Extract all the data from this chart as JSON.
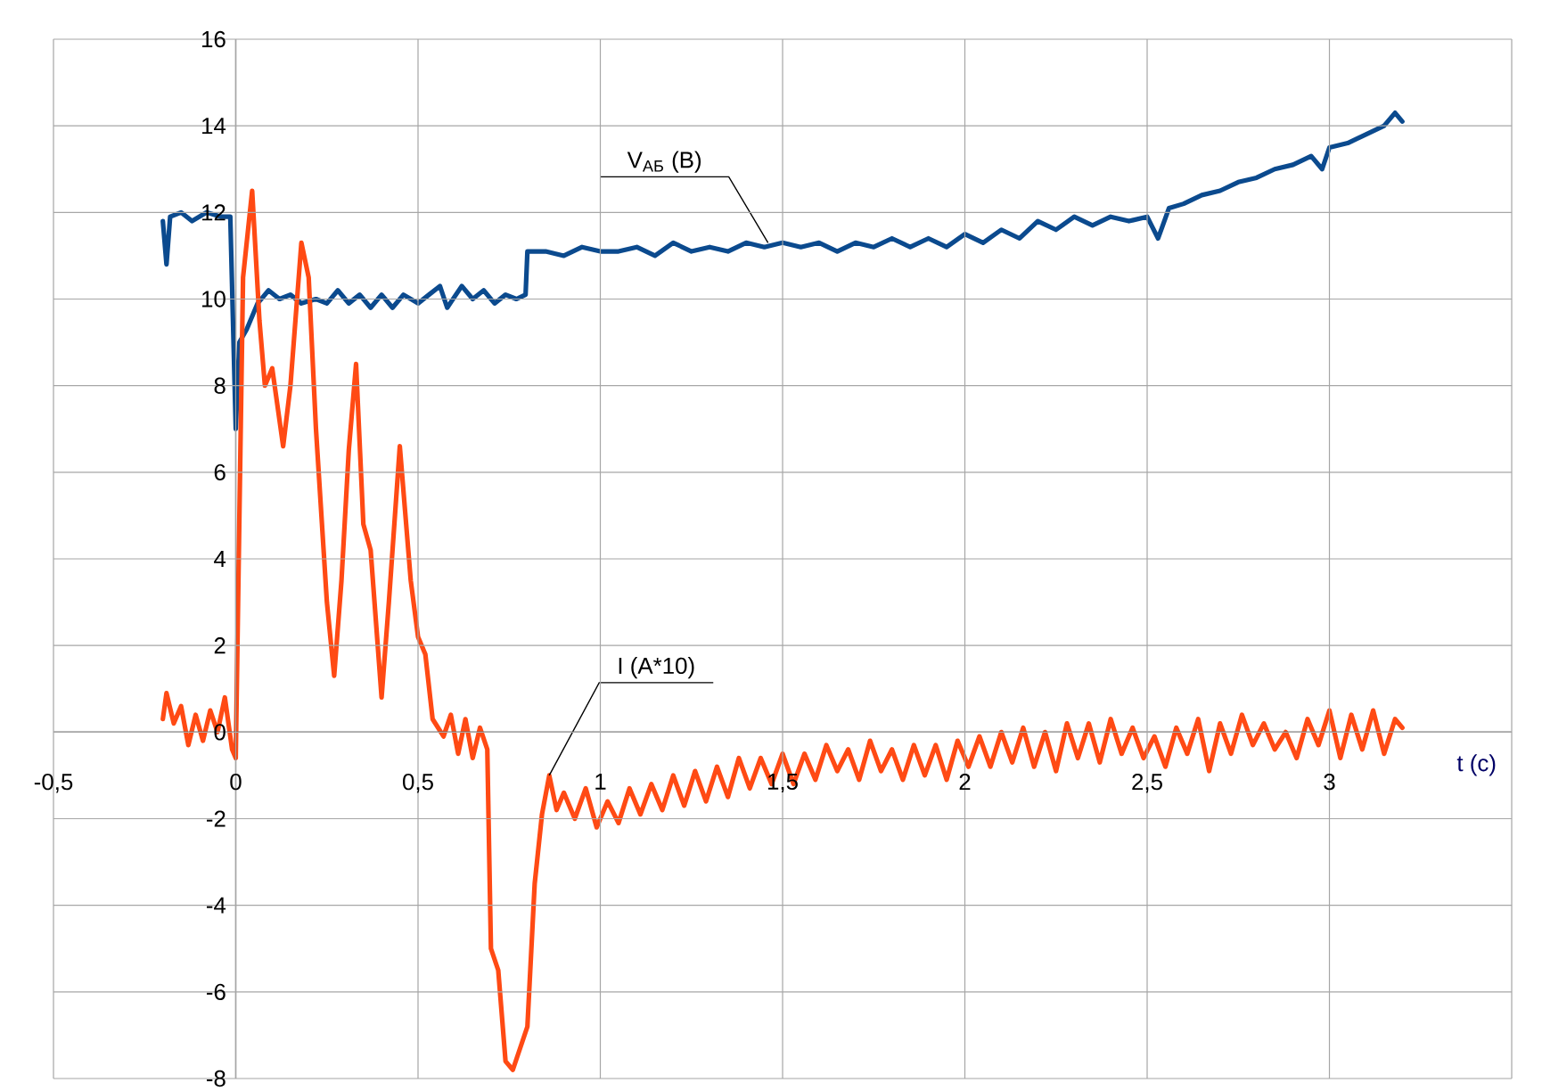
{
  "chart_data": {
    "type": "line",
    "xlabel": "t (с)",
    "xlim": [
      -0.5,
      3.5
    ],
    "ylim": [
      -8,
      16
    ],
    "xticks": [
      {
        "value": -0.5,
        "label": "-0,5"
      },
      0,
      {
        "value": 0.5,
        "label": "0,5"
      },
      1,
      {
        "value": 1.5,
        "label": "1,5"
      },
      2,
      {
        "value": 2.5,
        "label": "2,5"
      },
      3,
      {
        "value": 3.5,
        "label": null
      }
    ],
    "yticks": [
      -8,
      -6,
      -4,
      -2,
      0,
      2,
      4,
      6,
      8,
      10,
      12,
      14,
      16
    ],
    "grid": true,
    "series": [
      {
        "color": "#0b4a8e",
        "x": [
          -0.2,
          -0.19,
          -0.18,
          -0.15,
          -0.12,
          -0.08,
          -0.04,
          -0.015,
          0.0,
          0.01,
          0.03,
          0.06,
          0.09,
          0.12,
          0.15,
          0.18,
          0.22,
          0.25,
          0.28,
          0.31,
          0.34,
          0.37,
          0.4,
          0.43,
          0.46,
          0.5,
          0.53,
          0.56,
          0.58,
          0.62,
          0.65,
          0.68,
          0.71,
          0.74,
          0.77,
          0.795,
          0.8,
          0.85,
          0.9,
          0.95,
          1.0,
          1.05,
          1.1,
          1.15,
          1.2,
          1.25,
          1.3,
          1.35,
          1.4,
          1.45,
          1.5,
          1.55,
          1.6,
          1.65,
          1.7,
          1.75,
          1.8,
          1.85,
          1.9,
          1.95,
          2.0,
          2.05,
          2.1,
          2.15,
          2.2,
          2.25,
          2.3,
          2.35,
          2.4,
          2.45,
          2.5,
          2.53,
          2.56,
          2.6,
          2.65,
          2.7,
          2.75,
          2.8,
          2.85,
          2.9,
          2.95,
          2.98,
          3.0,
          3.05,
          3.1,
          3.15,
          3.18,
          3.2
        ],
        "values": [
          11.8,
          10.8,
          11.9,
          12.0,
          11.8,
          12.0,
          11.9,
          11.9,
          7.0,
          9.0,
          9.3,
          9.9,
          10.2,
          10.0,
          10.1,
          9.9,
          10.0,
          9.9,
          10.2,
          9.9,
          10.1,
          9.8,
          10.1,
          9.8,
          10.1,
          9.9,
          10.1,
          10.3,
          9.8,
          10.3,
          10.0,
          10.2,
          9.9,
          10.1,
          10.0,
          10.1,
          11.1,
          11.1,
          11.0,
          11.2,
          11.1,
          11.1,
          11.2,
          11.0,
          11.3,
          11.1,
          11.2,
          11.1,
          11.3,
          11.2,
          11.3,
          11.2,
          11.3,
          11.1,
          11.3,
          11.2,
          11.4,
          11.2,
          11.4,
          11.2,
          11.5,
          11.3,
          11.6,
          11.4,
          11.8,
          11.6,
          11.9,
          11.7,
          11.9,
          11.8,
          11.9,
          11.4,
          12.1,
          12.2,
          12.4,
          12.5,
          12.7,
          12.8,
          13.0,
          13.1,
          13.3,
          13.0,
          13.5,
          13.6,
          13.8,
          14.0,
          14.3,
          14.1
        ]
      },
      {
        "color": "#ff4a14",
        "x": [
          -0.2,
          -0.19,
          -0.17,
          -0.15,
          -0.13,
          -0.11,
          -0.09,
          -0.07,
          -0.05,
          -0.03,
          -0.01,
          0.0,
          0.01,
          0.02,
          0.045,
          0.065,
          0.08,
          0.1,
          0.13,
          0.15,
          0.18,
          0.2,
          0.22,
          0.25,
          0.27,
          0.29,
          0.31,
          0.33,
          0.35,
          0.37,
          0.4,
          0.42,
          0.45,
          0.48,
          0.5,
          0.52,
          0.54,
          0.57,
          0.59,
          0.61,
          0.63,
          0.65,
          0.67,
          0.69,
          0.7,
          0.72,
          0.74,
          0.76,
          0.78,
          0.8,
          0.82,
          0.84,
          0.86,
          0.88,
          0.9,
          0.93,
          0.96,
          0.99,
          1.02,
          1.05,
          1.08,
          1.11,
          1.14,
          1.17,
          1.2,
          1.23,
          1.26,
          1.29,
          1.32,
          1.35,
          1.38,
          1.41,
          1.44,
          1.47,
          1.5,
          1.53,
          1.56,
          1.59,
          1.62,
          1.65,
          1.68,
          1.71,
          1.74,
          1.77,
          1.8,
          1.83,
          1.86,
          1.89,
          1.92,
          1.95,
          1.98,
          2.01,
          2.04,
          2.07,
          2.1,
          2.13,
          2.16,
          2.19,
          2.22,
          2.25,
          2.28,
          2.31,
          2.34,
          2.37,
          2.4,
          2.43,
          2.46,
          2.49,
          2.52,
          2.55,
          2.58,
          2.61,
          2.64,
          2.67,
          2.7,
          2.73,
          2.76,
          2.79,
          2.82,
          2.85,
          2.88,
          2.91,
          2.94,
          2.97,
          3.0,
          3.03,
          3.06,
          3.09,
          3.12,
          3.15,
          3.18,
          3.2
        ],
        "values": [
          0.3,
          0.9,
          0.2,
          0.6,
          -0.3,
          0.4,
          -0.2,
          0.5,
          0.0,
          0.8,
          -0.4,
          -0.6,
          5.0,
          10.5,
          12.5,
          9.5,
          8.0,
          8.4,
          6.6,
          8.0,
          11.3,
          10.5,
          7.0,
          3.0,
          1.3,
          3.5,
          6.5,
          8.5,
          4.8,
          4.2,
          0.8,
          3.0,
          6.6,
          3.5,
          2.2,
          1.8,
          0.3,
          -0.1,
          0.4,
          -0.5,
          0.3,
          -0.6,
          0.1,
          -0.4,
          -5.0,
          -5.5,
          -7.6,
          -7.8,
          -7.3,
          -6.8,
          -3.5,
          -1.9,
          -1.0,
          -1.8,
          -1.4,
          -2.0,
          -1.3,
          -2.2,
          -1.6,
          -2.1,
          -1.3,
          -1.9,
          -1.2,
          -1.8,
          -1.0,
          -1.7,
          -0.9,
          -1.6,
          -0.8,
          -1.5,
          -0.6,
          -1.3,
          -0.6,
          -1.2,
          -0.5,
          -1.2,
          -0.5,
          -1.1,
          -0.3,
          -0.9,
          -0.4,
          -1.1,
          -0.2,
          -0.9,
          -0.4,
          -1.1,
          -0.3,
          -1.0,
          -0.3,
          -1.1,
          -0.2,
          -0.8,
          -0.1,
          -0.8,
          0.0,
          -0.7,
          0.1,
          -0.8,
          0.0,
          -0.9,
          0.2,
          -0.6,
          0.2,
          -0.7,
          0.3,
          -0.5,
          0.1,
          -0.6,
          -0.1,
          -0.8,
          0.1,
          -0.5,
          0.3,
          -0.9,
          0.2,
          -0.5,
          0.4,
          -0.3,
          0.2,
          -0.4,
          0.0,
          -0.6,
          0.3,
          -0.3,
          0.5,
          -0.6,
          0.4,
          -0.4,
          0.5,
          -0.5,
          0.3,
          0.1
        ]
      }
    ],
    "annotations": [
      {
        "text": "V$_{АБ}$ (В)",
        "x": 1.46,
        "y": 11.3
      },
      {
        "text": "I (A*10)",
        "x": 0.86,
        "y": -1.0
      }
    ]
  }
}
